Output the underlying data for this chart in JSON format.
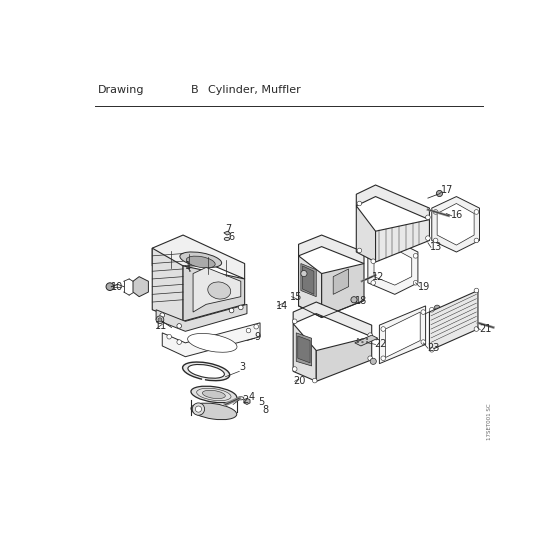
{
  "title_left": "Drawing",
  "title_mid": "B",
  "title_right": "Cylinder, Muffler",
  "watermark": "17SET001 SC",
  "bg_color": "#ffffff",
  "lc": "#2a2a2a",
  "lw": 0.8,
  "fig_w": 5.6,
  "fig_h": 5.6,
  "dpi": 100
}
